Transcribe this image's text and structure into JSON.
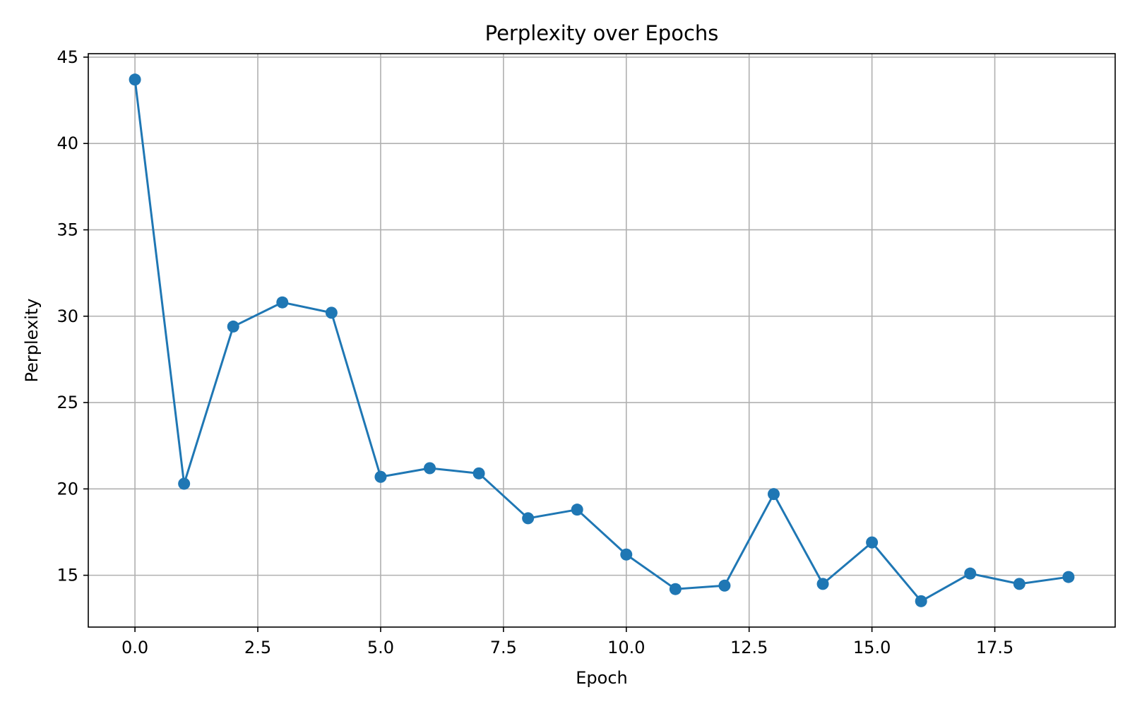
{
  "chart_data": {
    "type": "line",
    "title": "Perplexity over Epochs",
    "xlabel": "Epoch",
    "ylabel": "Perplexity",
    "x": [
      0,
      1,
      2,
      3,
      4,
      5,
      6,
      7,
      8,
      9,
      10,
      11,
      12,
      13,
      14,
      15,
      16,
      17,
      18,
      19
    ],
    "series": [
      {
        "values": [
          43.7,
          20.3,
          29.4,
          30.8,
          30.2,
          20.7,
          21.2,
          20.9,
          18.3,
          18.8,
          16.2,
          14.2,
          14.4,
          19.7,
          14.5,
          16.9,
          13.5,
          15.1,
          14.5,
          14.9
        ],
        "color": "#1f77b4",
        "marker": "circle"
      }
    ],
    "xlim": [
      -0.95,
      19.95
    ],
    "ylim": [
      12.0,
      45.2
    ],
    "xticks": [
      0.0,
      2.5,
      5.0,
      7.5,
      10.0,
      12.5,
      15.0,
      17.5
    ],
    "xtick_labels": [
      "0.0",
      "2.5",
      "5.0",
      "7.5",
      "10.0",
      "12.5",
      "15.0",
      "17.5"
    ],
    "yticks": [
      15,
      20,
      25,
      30,
      35,
      40,
      45
    ],
    "ytick_labels": [
      "15",
      "20",
      "25",
      "30",
      "35",
      "40",
      "45"
    ],
    "grid": true,
    "legend": "none"
  }
}
